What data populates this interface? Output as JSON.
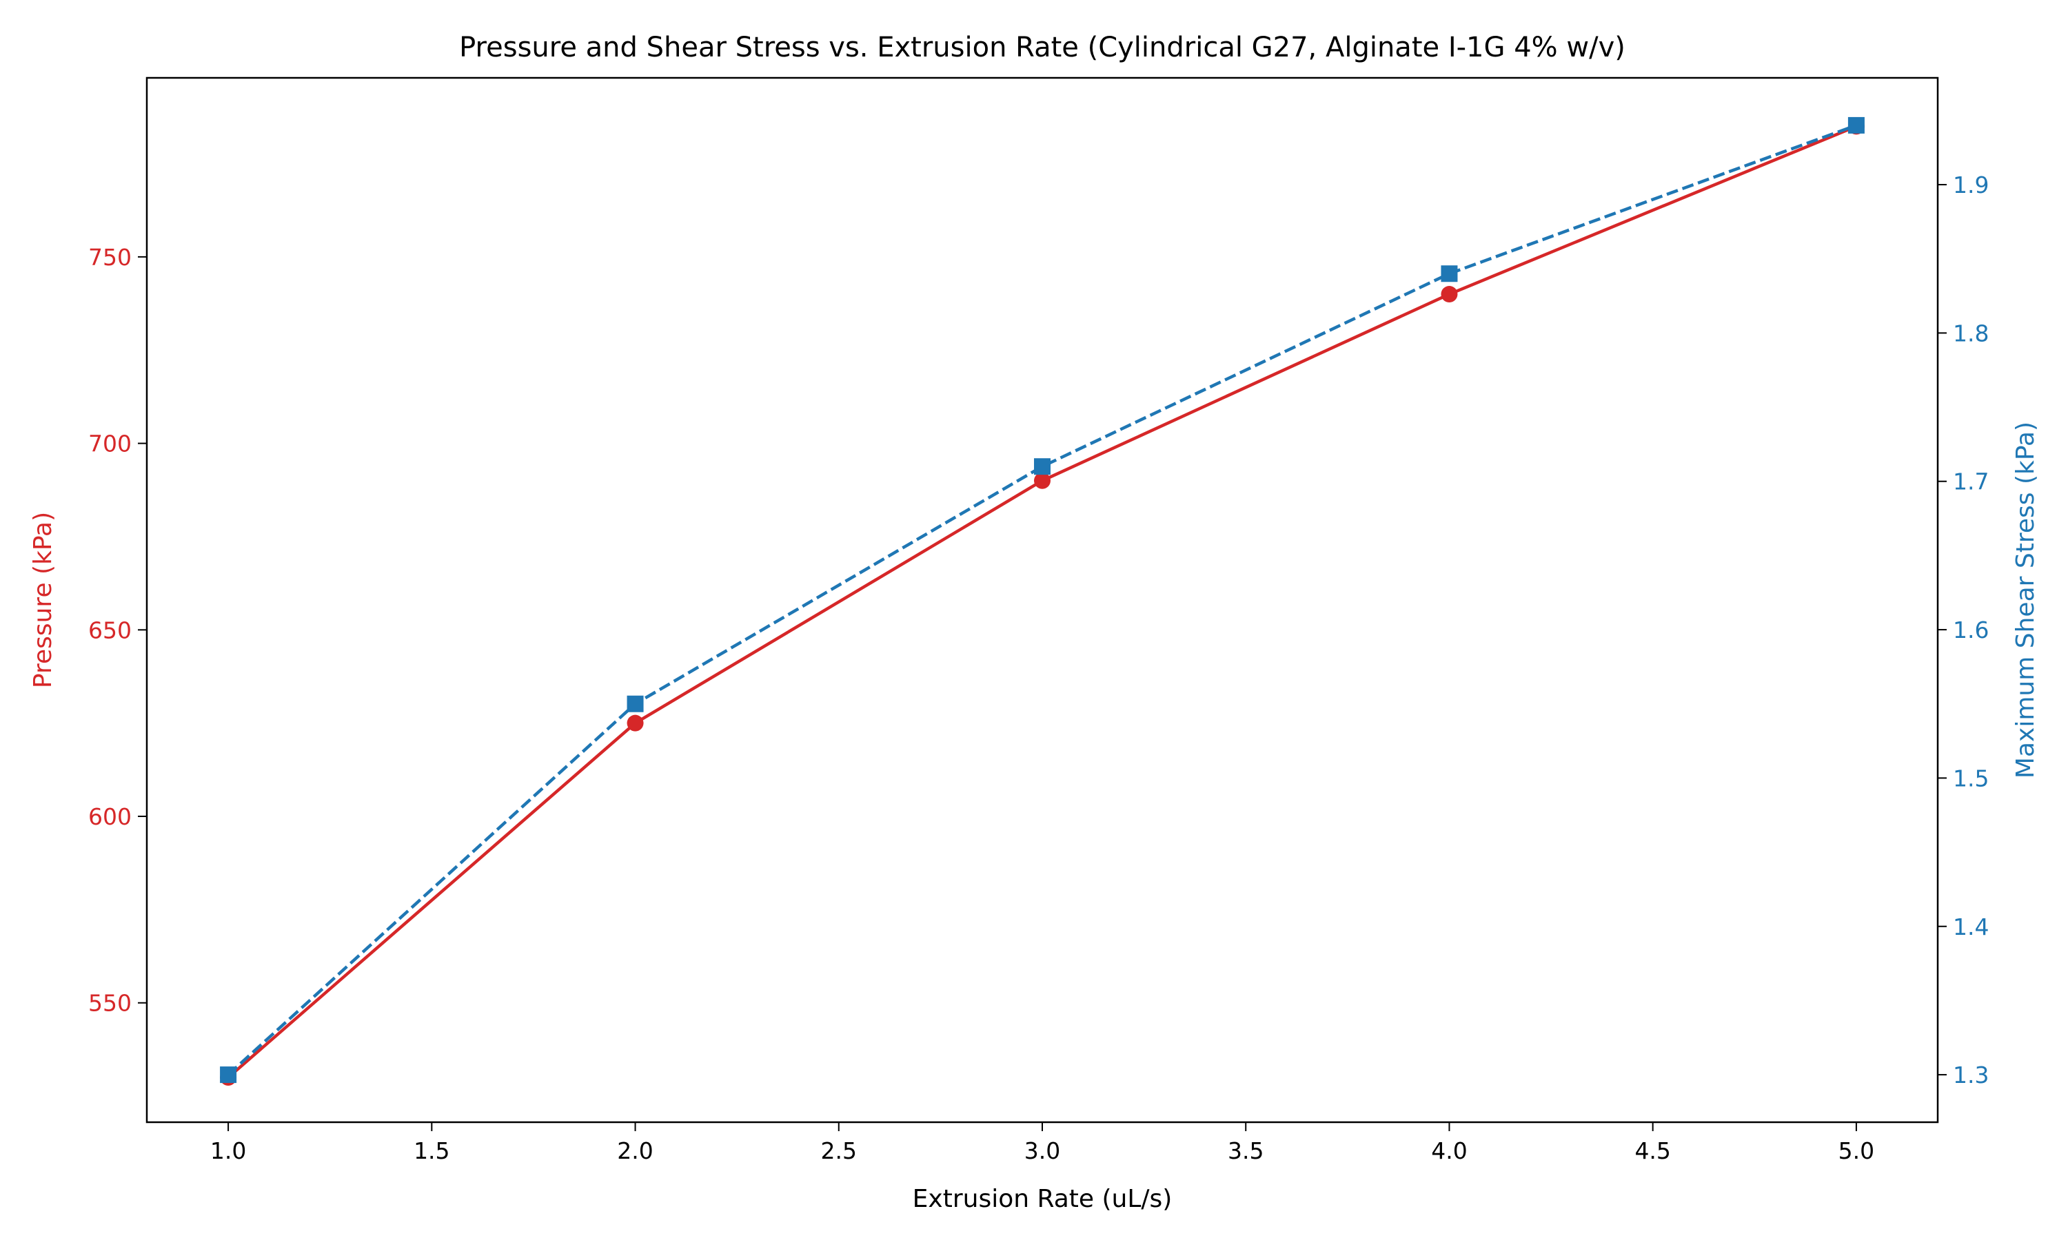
{
  "chart_data": {
    "type": "line",
    "title": "Pressure and Shear Stress vs. Extrusion Rate (Cylindrical G27, Alginate I-1G 4% w/v)",
    "xlabel": "Extrusion Rate (uL/s)",
    "ylabel_left": "Pressure (kPa)",
    "ylabel_right": "Maximum Shear Stress (kPa)",
    "x": [
      1.0,
      2.0,
      3.0,
      4.0,
      5.0
    ],
    "xlim": [
      0.8,
      5.2
    ],
    "x_ticks": [
      1.0,
      1.5,
      2.0,
      2.5,
      3.0,
      3.5,
      4.0,
      4.5,
      5.0
    ],
    "ylim_left": [
      518,
      798
    ],
    "y_ticks_left": [
      550,
      600,
      650,
      700,
      750
    ],
    "ylim_right": [
      1.268,
      1.972
    ],
    "y_ticks_right": [
      1.3,
      1.4,
      1.5,
      1.6,
      1.7,
      1.8,
      1.9
    ],
    "grid": false,
    "series": [
      {
        "axis": "left",
        "values": [
          530,
          625,
          690,
          740,
          785
        ],
        "color": "#d62728",
        "linestyle": "solid",
        "marker": "circle"
      },
      {
        "axis": "right",
        "values": [
          1.3,
          1.55,
          1.71,
          1.84,
          1.94
        ],
        "color": "#1f77b4",
        "linestyle": "dashed",
        "marker": "square"
      }
    ]
  }
}
